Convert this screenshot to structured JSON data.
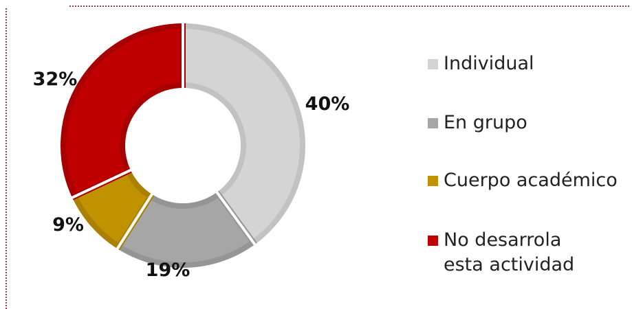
{
  "chart_data": {
    "type": "pie",
    "donut": true,
    "categories": [
      "Individual",
      "En grupo",
      "Cuerpo académico",
      "No desarrola esta actividad"
    ],
    "values": [
      40,
      19,
      9,
      32
    ],
    "labels": [
      "40%",
      "19%",
      "9%",
      "32%"
    ],
    "colors": [
      "#d4d4d4",
      "#a6a6a6",
      "#c09200",
      "#c00000"
    ],
    "edge_colors": [
      "#c2c2c2",
      "#959595",
      "#a98000",
      "#a80000"
    ],
    "legend_position": "right"
  }
}
